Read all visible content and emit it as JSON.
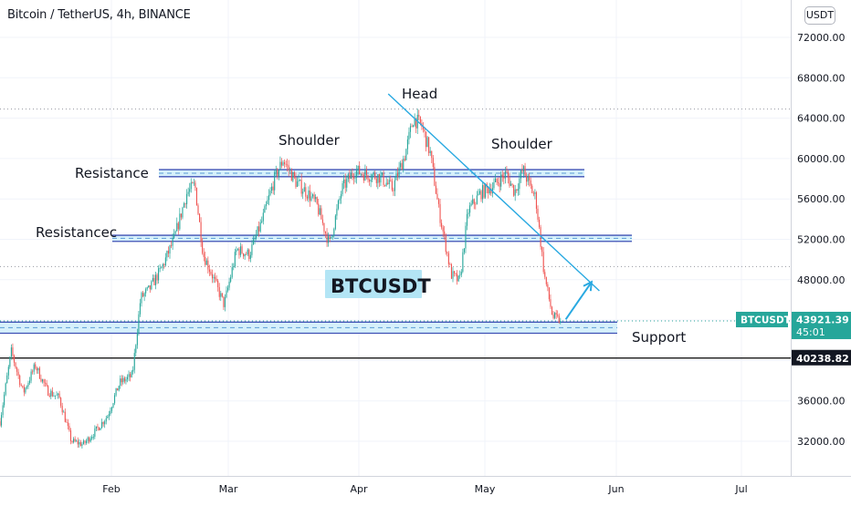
{
  "header": {
    "title": "Bitcoin / TetherUS, 4h, BINANCE",
    "currency_button": "USDT"
  },
  "chart_data": {
    "type": "line",
    "title": "Bitcoin / TetherUS, 4h, BINANCE",
    "xlabel": "",
    "ylabel": "",
    "ylim": [
      28500,
      74500
    ],
    "grid": true,
    "x_tick_labels": [
      "Feb",
      "Mar",
      "Apr",
      "May",
      "Jun",
      "Jul"
    ],
    "y_tick_values": [
      32000,
      36000,
      40000,
      44000,
      48000,
      52000,
      56000,
      60000,
      64000,
      68000,
      72000
    ],
    "y_tick_labels": [
      "32000.00",
      "36000.00",
      "40000.00",
      "44000.00",
      "48000.00",
      "52000.00",
      "56000.00",
      "60000.00",
      "64000.00",
      "68000.00",
      "72000.00"
    ],
    "series": [
      {
        "x": [
          "Jan 1",
          "Jan 4",
          "Jan 7",
          "Jan 10",
          "Jan 13",
          "Jan 16",
          "Jan 19",
          "Jan 22",
          "Jan 25",
          "Jan 28",
          "Jan 31",
          "Feb 3",
          "Feb 6",
          "Feb 8",
          "Feb 10",
          "Feb 13",
          "Feb 16",
          "Feb 19",
          "Feb 21",
          "Feb 23",
          "Feb 25",
          "Feb 28",
          "Mar 3",
          "Mar 6",
          "Mar 9",
          "Mar 12",
          "Mar 14",
          "Mar 17",
          "Mar 20",
          "Mar 22",
          "Mar 25",
          "Mar 28",
          "Mar 31",
          "Apr 3",
          "Apr 6",
          "Apr 9",
          "Apr 12",
          "Apr 14",
          "Apr 16",
          "Apr 18",
          "Apr 20",
          "Apr 23",
          "Apr 25",
          "Apr 27",
          "Apr 30",
          "May 3",
          "May 6",
          "May 8",
          "May 10",
          "May 12",
          "May 13",
          "May 15",
          "May 17",
          "May 19"
        ],
        "values": [
          29500,
          33500,
          40900,
          36800,
          39500,
          37000,
          36300,
          32000,
          31700,
          33000,
          34500,
          37800,
          38500,
          46200,
          47000,
          49100,
          52000,
          56500,
          57400,
          50500,
          48600,
          45500,
          51000,
          50500,
          53800,
          58000,
          59900,
          57700,
          56500,
          55400,
          51500,
          57000,
          58800,
          58400,
          58200,
          57000,
          60400,
          64000,
          63200,
          60500,
          55000,
          48500,
          47800,
          54800,
          56600,
          57300,
          58500,
          56700,
          58900,
          56900,
          56100,
          48500,
          44300,
          43921.39
        ]
      }
    ],
    "annotations": {
      "pattern_labels": [
        "Head",
        "Shoulder",
        "Shoulder"
      ],
      "level_labels": [
        "Resistance",
        "Resistancec",
        "Support"
      ],
      "watermark": "BTCUSDT",
      "support_zone": [
        42700,
        43800
      ],
      "resistance_zone_1": [
        58200,
        58900
      ],
      "resistance_zone_2": [
        51800,
        52400
      ],
      "trendline": {
        "from": [
          "Apr 8",
          66400
        ],
        "to": [
          "May 28",
          46900
        ]
      },
      "dotted_levels": [
        64900,
        49300
      ],
      "projection_arrow": {
        "from": [
          "May 19",
          43800
        ],
        "to": [
          "May 21",
          48500
        ]
      },
      "horizontal_line": 40238.82
    },
    "price_tags": {
      "symbol": "BTCUSDT",
      "last_price": "43921.39",
      "countdown": "45:01",
      "line_price": "40238.82"
    },
    "colors": {
      "up": "#26a69a",
      "down": "#ef5350",
      "trend": "#29a9e1",
      "zone_border": "#3f51b5",
      "zone_fill": "#d6f0fb",
      "tag_green": "#26a69a",
      "tag_black": "#131722"
    }
  }
}
